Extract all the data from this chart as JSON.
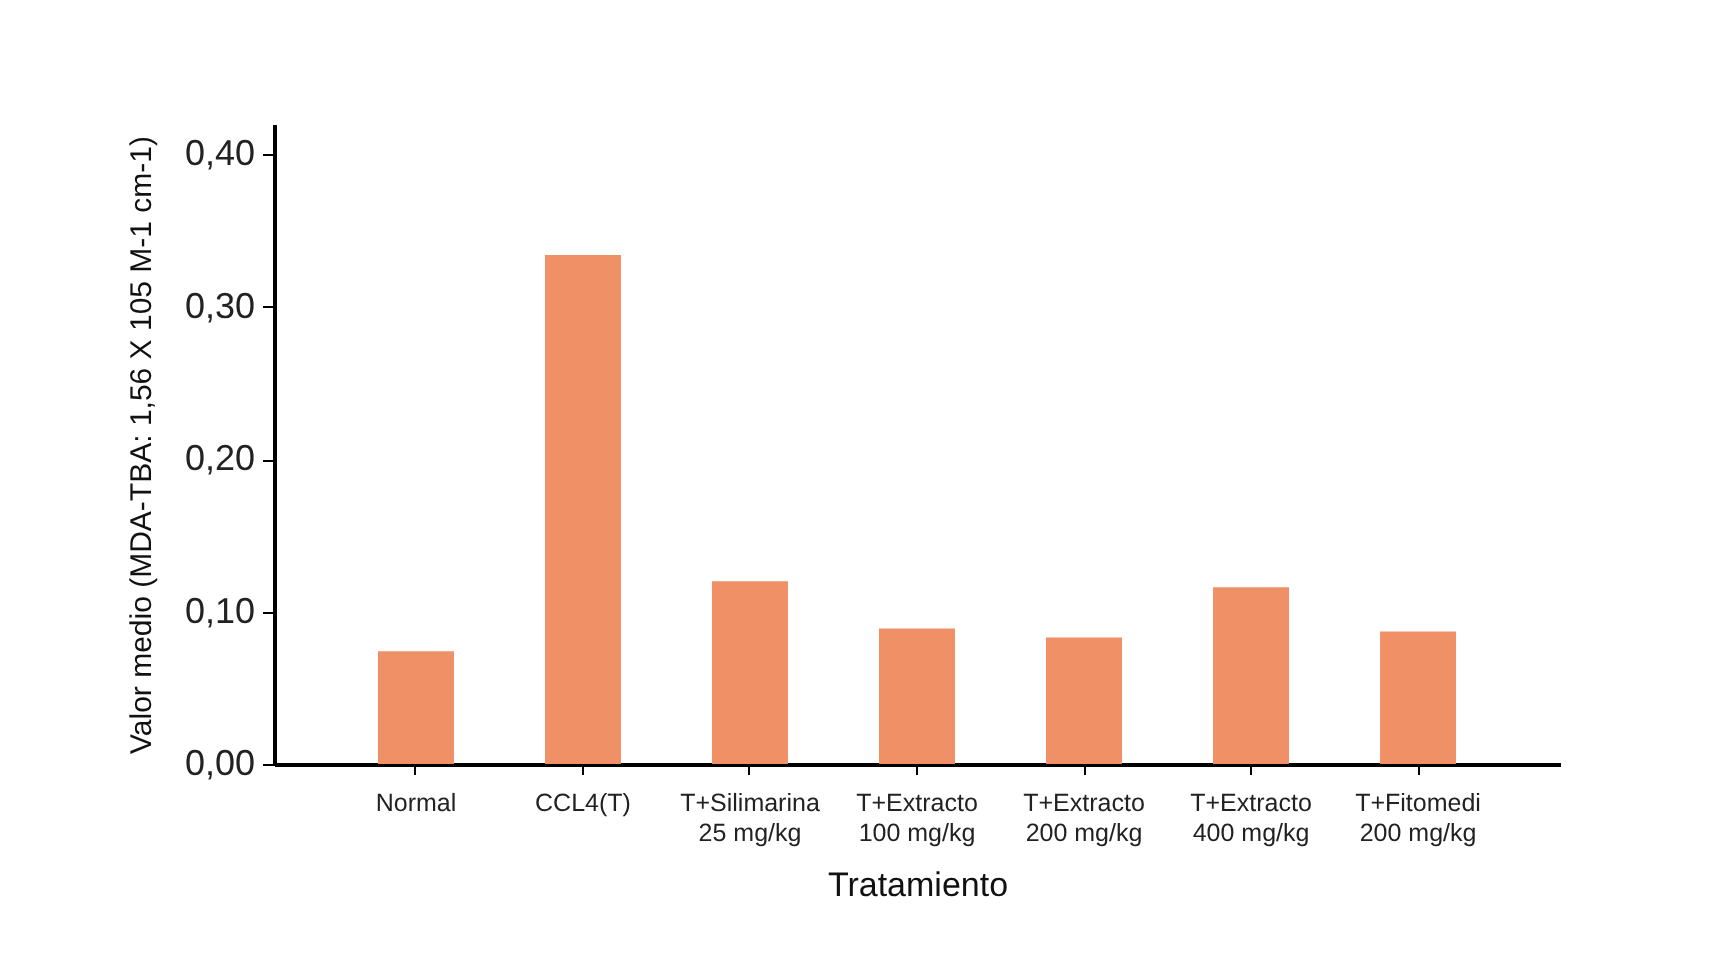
{
  "chart_data": {
    "type": "bar",
    "xlabel": "Tratamiento",
    "ylabel": "Valor medio (MDA-TBA: 1,56 X 105 M-1 cm-1)",
    "categories": [
      "Normal",
      "CCL4(T)",
      "T+Silimarina\n25 mg/kg",
      "T+Extracto\n100 mg/kg",
      "T+Extracto\n200 mg/kg",
      "T+Extracto\n400 mg/kg",
      "T+Fitomedi\n200 mg/kg"
    ],
    "values": [
      0.074,
      0.334,
      0.12,
      0.089,
      0.083,
      0.116,
      0.087
    ],
    "color": "#f09066",
    "ylim": [
      0,
      0.42
    ],
    "yticks": [
      {
        "value": 0,
        "label": "0,00"
      },
      {
        "value": 0.1,
        "label": "0,10"
      },
      {
        "value": 0.2,
        "label": "0,20"
      },
      {
        "value": 0.3,
        "label": "0,30"
      },
      {
        "value": 0.4,
        "label": "0,40"
      }
    ],
    "grid": false
  }
}
